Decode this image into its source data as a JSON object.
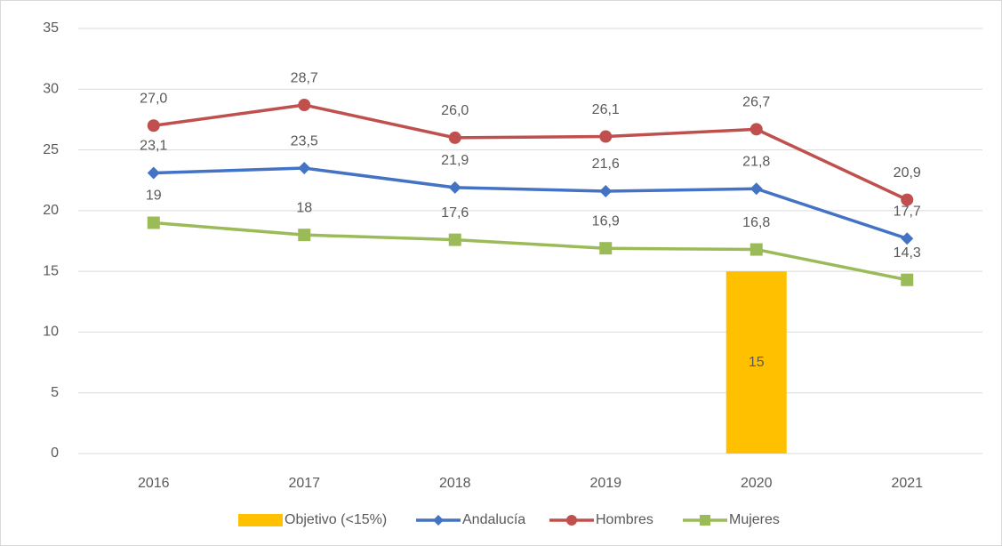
{
  "chart_data": {
    "type": "combo",
    "categories": [
      "2016",
      "2017",
      "2018",
      "2019",
      "2020",
      "2021"
    ],
    "series": [
      {
        "name": "Objetivo (<15%)",
        "type": "bar",
        "color": "#FFC000",
        "values": [
          null,
          null,
          null,
          null,
          15,
          null
        ]
      },
      {
        "name": "Andalucía",
        "type": "line",
        "marker": "diamond",
        "color": "#4472C4",
        "values": [
          23.1,
          23.5,
          21.9,
          21.6,
          21.8,
          17.7
        ],
        "value_labels": [
          "23,1",
          "23,5",
          "21,9",
          "21,6",
          "21,8",
          "17,7"
        ]
      },
      {
        "name": "Hombres",
        "type": "line",
        "marker": "circle",
        "color": "#C0504D",
        "values": [
          27.0,
          28.7,
          26.0,
          26.1,
          26.7,
          20.9
        ],
        "value_labels": [
          "27,0",
          "28,7",
          "26,0",
          "26,1",
          "26,7",
          "20,9"
        ]
      },
      {
        "name": "Mujeres",
        "type": "line",
        "marker": "square",
        "color": "#9BBB59",
        "values": [
          19,
          18,
          17.6,
          16.9,
          16.8,
          14.3
        ],
        "value_labels": [
          "19",
          "18",
          "17,6",
          "16,9",
          "16,8",
          "14,3"
        ]
      }
    ],
    "ylim": [
      0,
      35
    ],
    "yticks": [
      0,
      5,
      10,
      15,
      20,
      25,
      30,
      35
    ],
    "grid": true,
    "legend": "bottom"
  }
}
